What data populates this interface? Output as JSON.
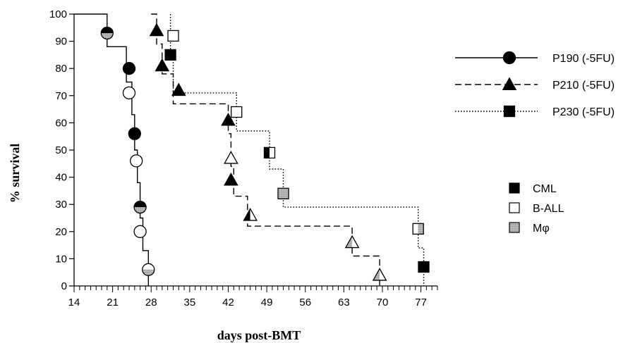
{
  "chart_data": {
    "type": "line",
    "subtype": "kaplan-meier step curves",
    "title": "",
    "xlabel": "days post-BMT",
    "ylabel": "% survival",
    "xlim": [
      14,
      80
    ],
    "ylim": [
      0,
      100
    ],
    "x_ticks": [
      "14",
      "21",
      "28",
      "35",
      "42",
      "49",
      "56",
      "63",
      "70",
      "77"
    ],
    "y_ticks": [
      "0",
      "10",
      "20",
      "30",
      "40",
      "50",
      "60",
      "70",
      "80",
      "90",
      "100"
    ],
    "grid": false,
    "legend_position": "right",
    "series": [
      {
        "name": "P190 (-5FU)",
        "line_style": "solid",
        "marker": "circle",
        "steps": [
          [
            14,
            100
          ],
          [
            20,
            100
          ],
          [
            20,
            88
          ],
          [
            23.5,
            88
          ],
          [
            23.5,
            75
          ],
          [
            24.5,
            75
          ],
          [
            24.5,
            63
          ],
          [
            25,
            63
          ],
          [
            25,
            50
          ],
          [
            25.5,
            50
          ],
          [
            25.5,
            38
          ],
          [
            26,
            38
          ],
          [
            26,
            25
          ],
          [
            26.5,
            25
          ],
          [
            26.5,
            13
          ],
          [
            27.5,
            13
          ],
          [
            27.5,
            0
          ]
        ],
        "markers": [
          {
            "x": 20,
            "y": 93,
            "fill": "cml_mphi"
          },
          {
            "x": 24,
            "y": 80,
            "fill": "cml"
          },
          {
            "x": 24,
            "y": 71,
            "fill": "ball"
          },
          {
            "x": 25,
            "y": 56,
            "fill": "cml"
          },
          {
            "x": 25.3,
            "y": 46,
            "fill": "ball"
          },
          {
            "x": 26,
            "y": 29,
            "fill": "cml_mphi"
          },
          {
            "x": 26,
            "y": 20,
            "fill": "ball"
          },
          {
            "x": 27.5,
            "y": 6,
            "fill": "ball_mphi"
          }
        ]
      },
      {
        "name": "P210 (-5FU)",
        "line_style": "dashed",
        "marker": "triangle",
        "steps": [
          [
            28,
            100
          ],
          [
            29,
            100
          ],
          [
            29,
            89
          ],
          [
            30,
            89
          ],
          [
            30,
            78
          ],
          [
            32,
            78
          ],
          [
            32,
            67
          ],
          [
            42,
            67
          ],
          [
            42,
            56
          ],
          [
            42.5,
            56
          ],
          [
            42.5,
            44
          ],
          [
            43,
            44
          ],
          [
            43,
            33
          ],
          [
            45.5,
            33
          ],
          [
            45.5,
            22
          ],
          [
            64.5,
            22
          ],
          [
            64.5,
            11
          ],
          [
            69.5,
            11
          ],
          [
            69.5,
            0
          ]
        ],
        "markers": [
          {
            "x": 29,
            "y": 94,
            "fill": "cml"
          },
          {
            "x": 30,
            "y": 81,
            "fill": "cml"
          },
          {
            "x": 33,
            "y": 72,
            "fill": "cml"
          },
          {
            "x": 42,
            "y": 61,
            "fill": "cml"
          },
          {
            "x": 42.5,
            "y": 47,
            "fill": "ball"
          },
          {
            "x": 42.5,
            "y": 39,
            "fill": "cml"
          },
          {
            "x": 46,
            "y": 26,
            "fill": "cml_ball"
          },
          {
            "x": 64.5,
            "y": 16,
            "fill": "mphi_ball"
          },
          {
            "x": 69.5,
            "y": 4,
            "fill": "mphi_ball"
          }
        ]
      },
      {
        "name": "P230 (-5FU)",
        "line_style": "dotted",
        "marker": "square",
        "steps": [
          [
            31.5,
            100
          ],
          [
            31.5,
            86
          ],
          [
            32,
            86
          ],
          [
            32,
            71
          ],
          [
            43.5,
            71
          ],
          [
            43.5,
            57
          ],
          [
            49.5,
            57
          ],
          [
            49.5,
            43
          ],
          [
            52,
            43
          ],
          [
            52,
            29
          ],
          [
            76.5,
            29
          ],
          [
            76.5,
            14
          ],
          [
            77.5,
            14
          ],
          [
            77.5,
            0
          ]
        ],
        "markers": [
          {
            "x": 32,
            "y": 92,
            "fill": "ball"
          },
          {
            "x": 31.5,
            "y": 85,
            "fill": "cml"
          },
          {
            "x": 43.5,
            "y": 64,
            "fill": "ball"
          },
          {
            "x": 49.5,
            "y": 49,
            "fill": "cml_ball"
          },
          {
            "x": 52,
            "y": 34,
            "fill": "mphi"
          },
          {
            "x": 76.5,
            "y": 21,
            "fill": "ball_mphi"
          },
          {
            "x": 77.5,
            "y": 7,
            "fill": "cml"
          }
        ]
      }
    ],
    "disease_legend": [
      {
        "key": "cml",
        "label": "CML"
      },
      {
        "key": "ball",
        "label": "B-ALL"
      },
      {
        "key": "mphi",
        "label": "Mφ"
      }
    ]
  },
  "colors": {
    "cml": "#000000",
    "ball": "#ffffff",
    "mphi": "#a8a8a8",
    "stroke": "#000000"
  }
}
